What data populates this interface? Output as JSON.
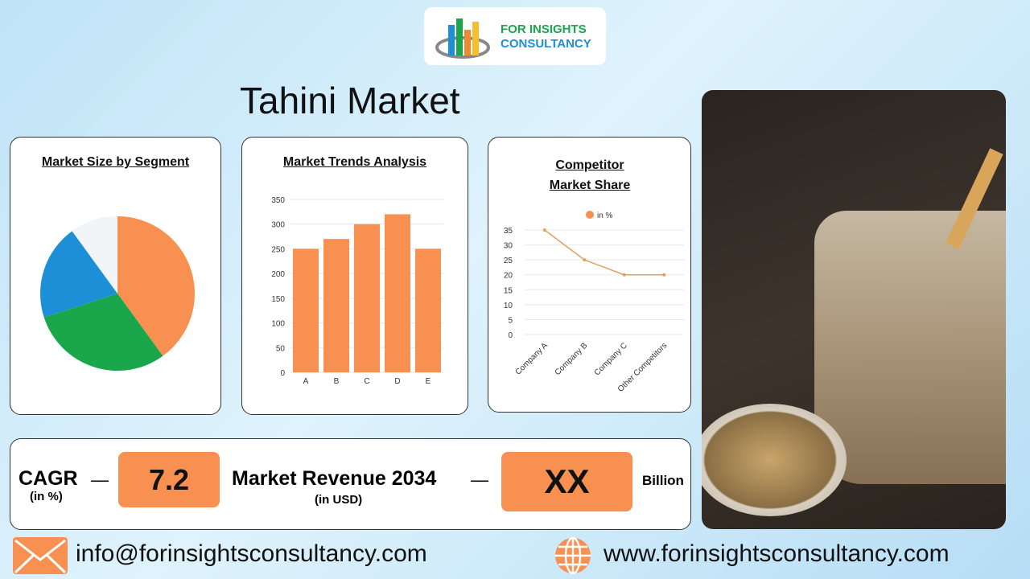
{
  "logo": {
    "line1": "FOR INSIGHTS",
    "line2": "CONSULTANCY"
  },
  "title": "Tahini Market",
  "chart_data": [
    {
      "type": "pie",
      "title": "Market Size by Segment",
      "values": [
        40,
        30,
        20,
        10
      ],
      "colors": [
        "#f79050",
        "#1aa64b",
        "#1d8fd6",
        "#f2f5f7"
      ]
    },
    {
      "type": "bar",
      "title": "Market Trends Analysis",
      "categories": [
        "A",
        "B",
        "C",
        "D",
        "E"
      ],
      "values": [
        250,
        270,
        300,
        320,
        250
      ],
      "ylim": [
        0,
        350
      ],
      "yticks": [
        0,
        50,
        100,
        150,
        200,
        250,
        300,
        350
      ],
      "color": "#f79050",
      "grid": true
    },
    {
      "type": "line",
      "title": "Competitor Market Share",
      "categories": [
        "Company A",
        "Company B",
        "Company C",
        "Other Competitors"
      ],
      "series": [
        {
          "name": "in %",
          "values": [
            35,
            25,
            20,
            20
          ]
        }
      ],
      "ylim": [
        0,
        35
      ],
      "yticks": [
        0,
        5,
        10,
        15,
        20,
        25,
        30,
        35
      ],
      "legend": "top",
      "color": "#e0a060",
      "grid": true
    }
  ],
  "stats": {
    "cagr_label": "CAGR",
    "cagr_unit": "(in %)",
    "dash": "—",
    "cagr_value": "7.2",
    "revenue_label": "Market Revenue 2034",
    "revenue_unit": "(in USD)",
    "revenue_value": "XX",
    "revenue_suffix": "Billion"
  },
  "footer": {
    "email": "info@forinsightsconsultancy.com",
    "website": "www.forinsightsconsultancy.com"
  },
  "colors": {
    "accent": "#f79050"
  }
}
